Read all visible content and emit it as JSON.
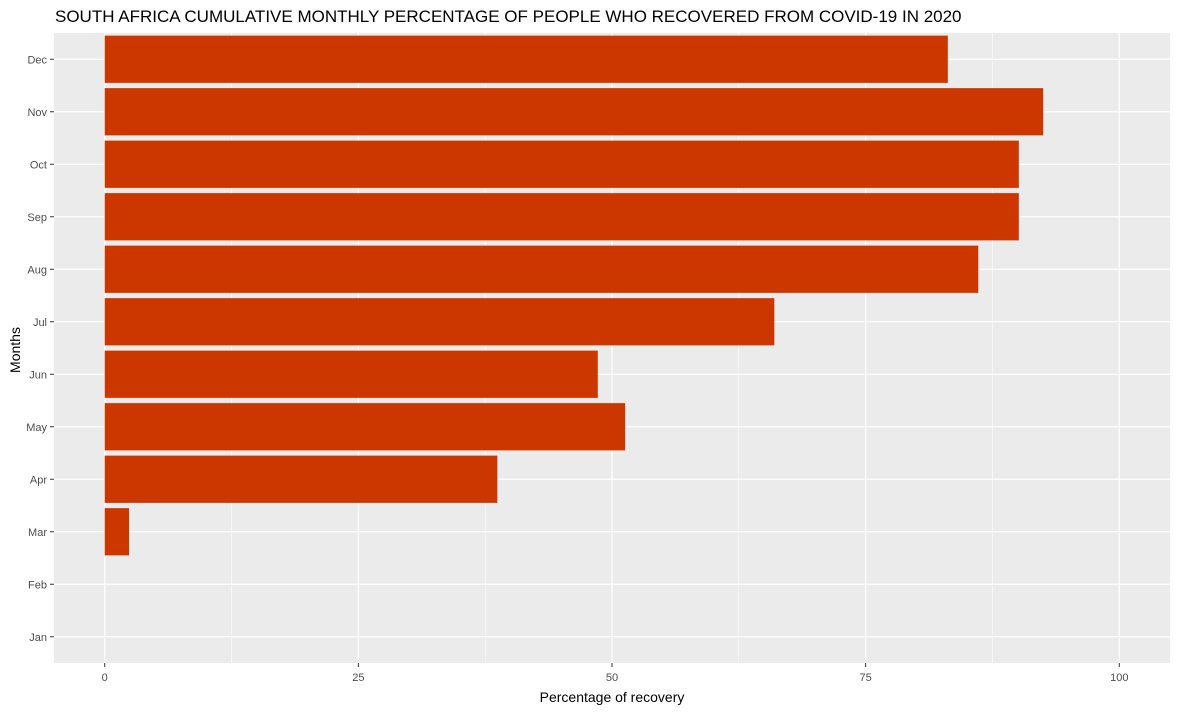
{
  "chart_data": {
    "type": "bar",
    "orientation": "horizontal",
    "title": "SOUTH AFRICA CUMULATIVE MONTHLY PERCENTAGE OF PEOPLE WHO RECOVERED FROM COVID-19 IN 2020",
    "xlabel": "Percentage of recovery",
    "ylabel": "Months",
    "categories": [
      "Jan",
      "Feb",
      "Mar",
      "Apr",
      "May",
      "Jun",
      "Jul",
      "Aug",
      "Sep",
      "Oct",
      "Nov",
      "Dec"
    ],
    "values": [
      0,
      0,
      2.4,
      38.7,
      51.3,
      48.6,
      66.0,
      86.1,
      90.1,
      90.1,
      92.5,
      83.1
    ],
    "xlim": [
      -5,
      105
    ],
    "xticks": [
      0,
      25,
      50,
      75,
      100
    ],
    "grid": true,
    "legend": "none",
    "colors": {
      "bar": "#CC3700",
      "panel": "#EBEBEB",
      "grid": "#FFFFFF",
      "text": "#000000",
      "tick_text": "#4D4D4D",
      "tick_mark": "#333333"
    }
  }
}
